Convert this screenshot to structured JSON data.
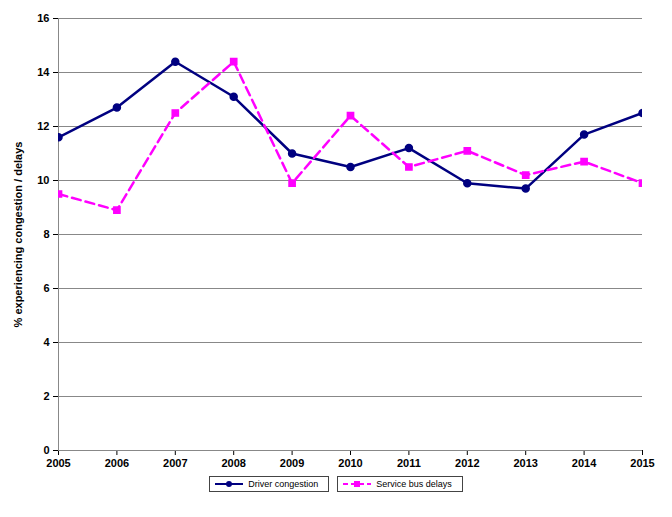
{
  "chart_data": {
    "type": "line",
    "y_label": "% experiencing congestion / delays",
    "x": [
      2005,
      2006,
      2007,
      2008,
      2009,
      2010,
      2011,
      2012,
      2013,
      2014,
      2015
    ],
    "series": [
      {
        "name": "Driver congestion",
        "color": "#000080",
        "marker": "circle",
        "line_style": "solid",
        "values": [
          11.6,
          12.7,
          14.4,
          13.1,
          11.0,
          10.5,
          11.2,
          9.9,
          9.7,
          11.7,
          12.5
        ]
      },
      {
        "name": "Service bus delays",
        "color": "#ff00ff",
        "marker": "square",
        "line_style": "dashed",
        "values": [
          9.5,
          8.9,
          12.5,
          14.4,
          9.9,
          12.4,
          10.5,
          11.1,
          10.2,
          10.7,
          9.9
        ]
      }
    ],
    "xlim": [
      2005,
      2015
    ],
    "xticks": [
      2005,
      2006,
      2007,
      2008,
      2009,
      2010,
      2011,
      2012,
      2013,
      2014,
      2015
    ],
    "ylim": [
      0,
      16
    ],
    "yticks": [
      0,
      2,
      4,
      6,
      8,
      10,
      12,
      14,
      16
    ],
    "grid": true,
    "legend": "bottom"
  }
}
